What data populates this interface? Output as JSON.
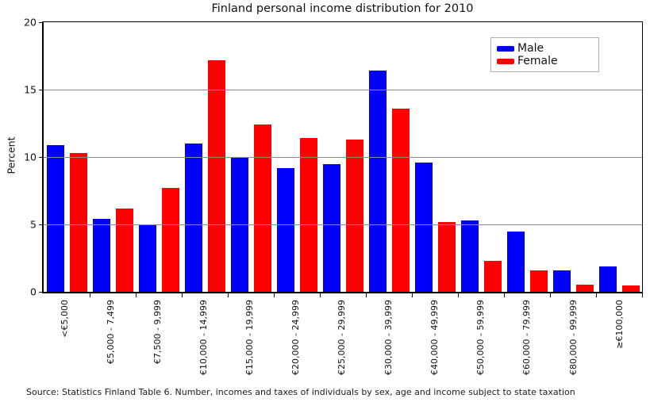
{
  "chart_data": {
    "type": "bar",
    "title": "Finland personal income distribution for 2010",
    "xlabel": "",
    "ylabel": "Percent",
    "ylim": [
      0,
      20
    ],
    "yticks": [
      0,
      5,
      10,
      15,
      20
    ],
    "gridlines_at": [
      5,
      10,
      15
    ],
    "grid": "horizontal",
    "legend_position": "upper right",
    "categories": [
      "<€5,000",
      "€5,000 - 7,499",
      "€7,500 - 9,999",
      "€10,000 - 14,999",
      "€15,000 - 19,999",
      "€20,000 - 24,999",
      "€25,000 - 29,999",
      "€30,000 - 39,999",
      "€40,000 - 49,999",
      "€50,000 - 59,999",
      "€60,000 - 79,999",
      "€80,000 - 99,999",
      "≥€100,000"
    ],
    "series": [
      {
        "name": "Male",
        "color": "#0000ff",
        "values": [
          10.9,
          5.4,
          5.0,
          11.0,
          10.0,
          9.2,
          9.5,
          16.4,
          9.6,
          5.3,
          4.5,
          1.6,
          1.9
        ]
      },
      {
        "name": "Female",
        "color": "#ff0000",
        "values": [
          10.3,
          6.2,
          7.7,
          17.2,
          12.4,
          11.4,
          11.3,
          13.6,
          5.2,
          2.3,
          1.6,
          0.55,
          0.5
        ]
      }
    ],
    "source_note": "Source: Statistics Finland Table 6. Number, incomes and taxes of individuals by sex, age and income subject to state taxation",
    "colors": {
      "male": "#0000ff",
      "female": "#ff0000",
      "gridline": "#8c8c8c",
      "axis": "#000000",
      "background": "#ffffff"
    }
  }
}
